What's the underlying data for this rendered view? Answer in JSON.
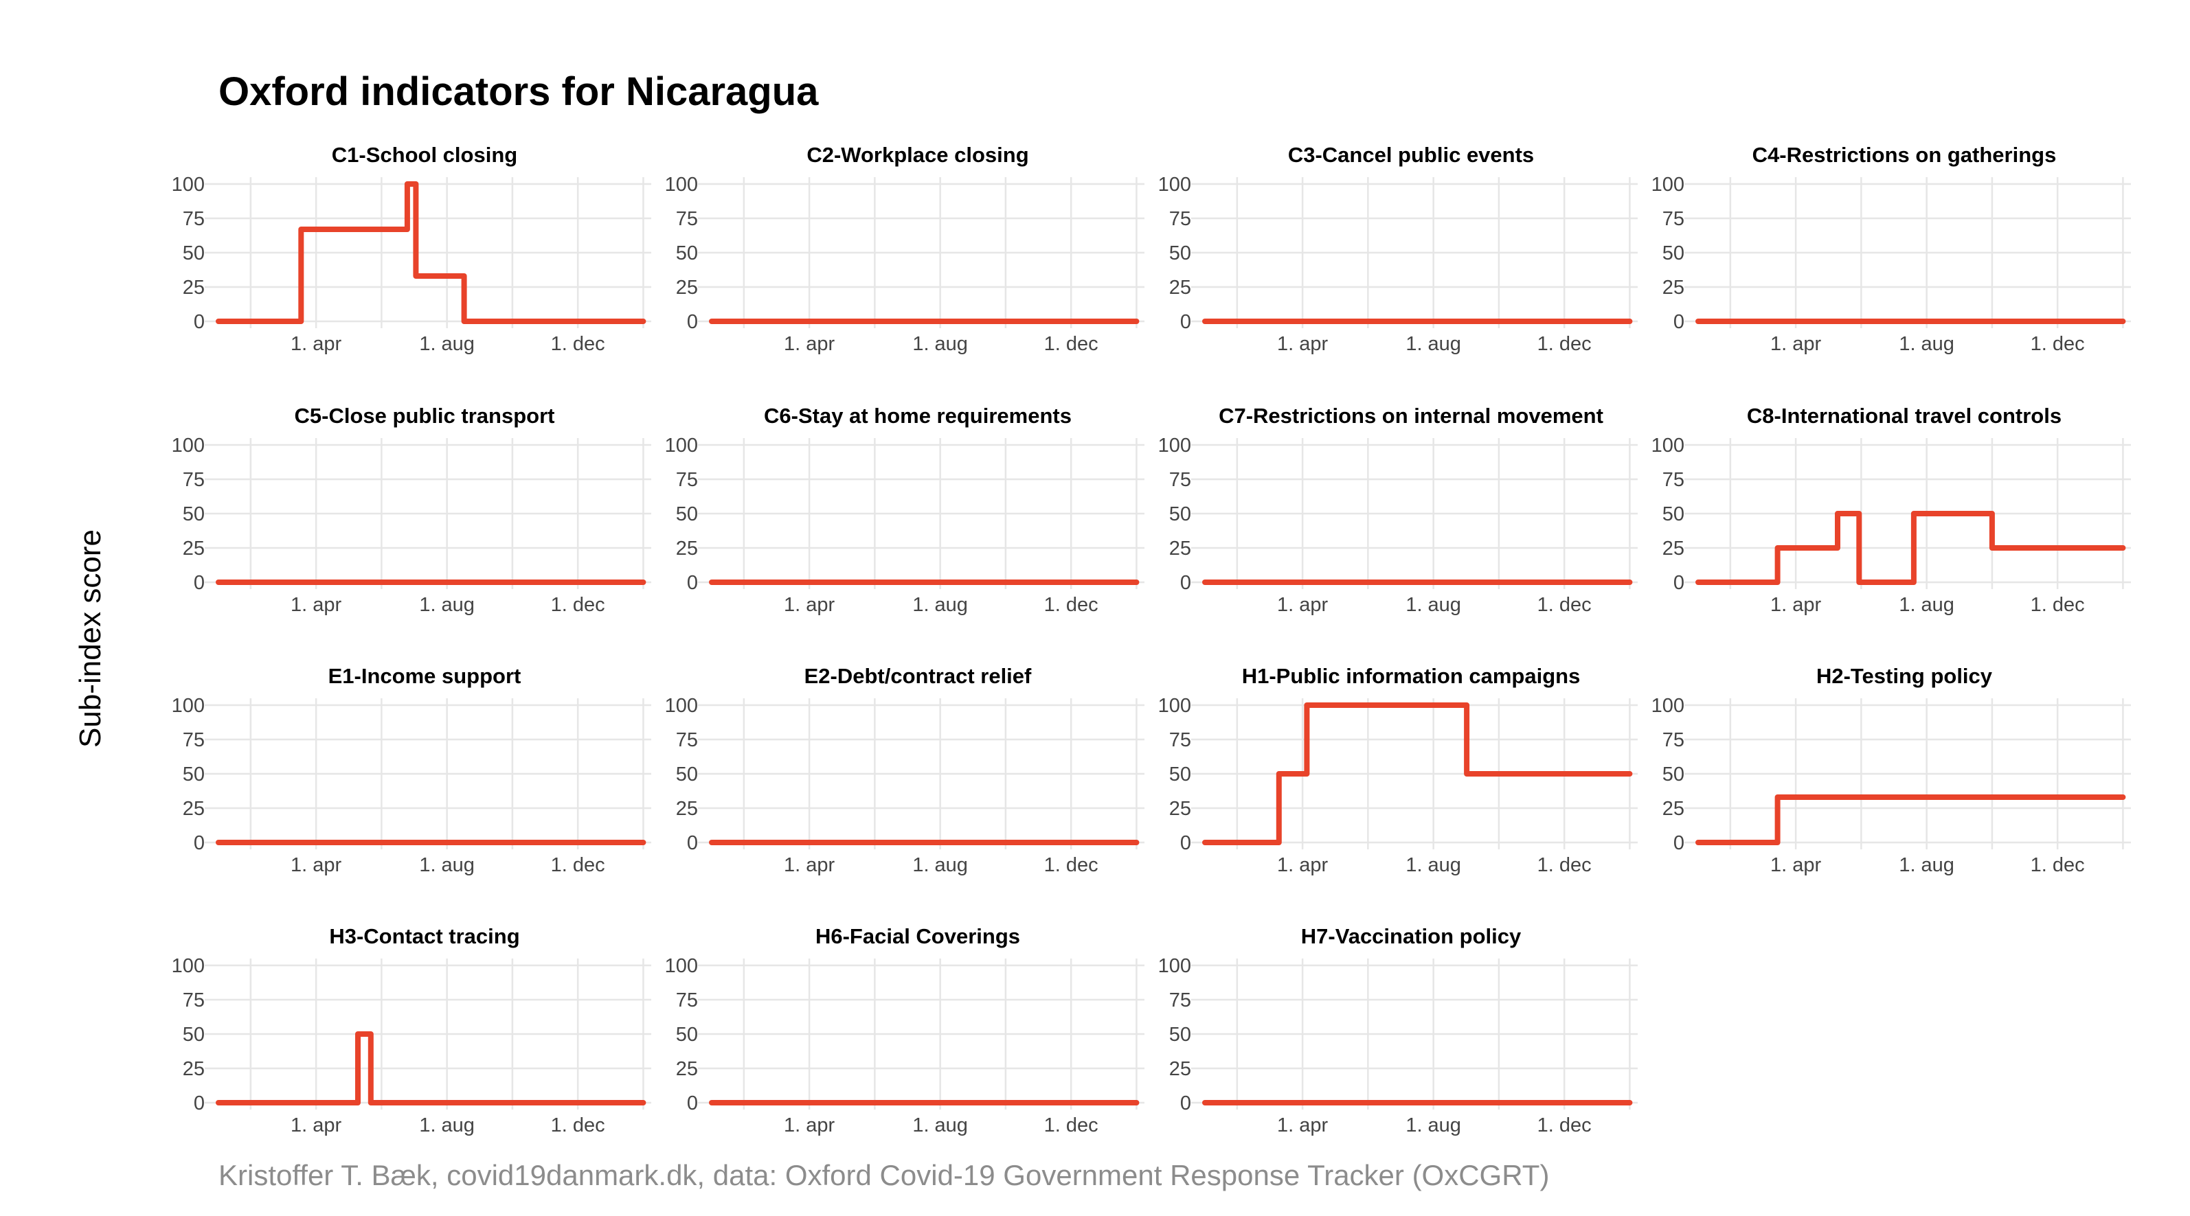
{
  "title": "Oxford indicators for Nicaragua",
  "ylabel": "Sub-index score",
  "caption": "Kristoffer T. Bæk, covid19danmark.dk, data: Oxford Covid-19 Government Response Tracker (OxCGRT)",
  "colors": {
    "series": "#e8432a",
    "grid": "#e6e6e6",
    "ticks": "#444444",
    "caption": "#8c8c8c"
  },
  "chart_data": {
    "type": "line",
    "step": true,
    "layout": "facet-grid 4x4",
    "xlim": [
      "2020-01-01",
      "2021-02-01"
    ],
    "ylim": [
      0,
      100
    ],
    "y_ticks": [
      0,
      25,
      50,
      75,
      100
    ],
    "x_ticks": [
      {
        "date": "2020-04-01",
        "label": "1. apr"
      },
      {
        "date": "2020-08-01",
        "label": "1. aug"
      },
      {
        "date": "2020-12-01",
        "label": "1. dec"
      }
    ],
    "grid": true,
    "panels": [
      {
        "title": "C1-School closing",
        "values": [
          [
            "2020-01-01",
            0
          ],
          [
            "2020-03-18",
            0
          ],
          [
            "2020-03-18",
            67
          ],
          [
            "2020-06-25",
            67
          ],
          [
            "2020-06-25",
            100
          ],
          [
            "2020-07-03",
            100
          ],
          [
            "2020-07-03",
            33
          ],
          [
            "2020-08-17",
            33
          ],
          [
            "2020-08-17",
            0
          ],
          [
            "2021-01-31",
            0
          ]
        ]
      },
      {
        "title": "C2-Workplace closing",
        "values": [
          [
            "2020-01-01",
            0
          ],
          [
            "2021-01-31",
            0
          ]
        ]
      },
      {
        "title": "C3-Cancel public events",
        "values": [
          [
            "2020-01-01",
            0
          ],
          [
            "2021-01-31",
            0
          ]
        ]
      },
      {
        "title": "C4-Restrictions on gatherings",
        "values": [
          [
            "2020-01-01",
            0
          ],
          [
            "2021-01-31",
            0
          ]
        ]
      },
      {
        "title": "C5-Close public transport",
        "values": [
          [
            "2020-01-01",
            0
          ],
          [
            "2021-01-31",
            0
          ]
        ]
      },
      {
        "title": "C6-Stay at home requirements",
        "values": [
          [
            "2020-01-01",
            0
          ],
          [
            "2021-01-31",
            0
          ]
        ]
      },
      {
        "title": "C7-Restrictions on internal movement",
        "values": [
          [
            "2020-01-01",
            0
          ],
          [
            "2021-01-31",
            0
          ]
        ]
      },
      {
        "title": "C8-International travel controls",
        "values": [
          [
            "2020-01-01",
            0
          ],
          [
            "2020-03-15",
            0
          ],
          [
            "2020-03-15",
            25
          ],
          [
            "2020-05-10",
            25
          ],
          [
            "2020-05-10",
            50
          ],
          [
            "2020-05-30",
            50
          ],
          [
            "2020-05-30",
            0
          ],
          [
            "2020-07-20",
            0
          ],
          [
            "2020-07-20",
            50
          ],
          [
            "2020-10-01",
            50
          ],
          [
            "2020-10-01",
            25
          ],
          [
            "2021-01-31",
            25
          ]
        ]
      },
      {
        "title": "E1-Income support",
        "values": [
          [
            "2020-01-01",
            0
          ],
          [
            "2021-01-31",
            0
          ]
        ]
      },
      {
        "title": "E2-Debt/contract relief",
        "values": [
          [
            "2020-01-01",
            0
          ],
          [
            "2021-01-31",
            0
          ]
        ]
      },
      {
        "title": "H1-Public information campaigns",
        "values": [
          [
            "2020-01-01",
            0
          ],
          [
            "2020-03-10",
            0
          ],
          [
            "2020-03-10",
            50
          ],
          [
            "2020-04-05",
            50
          ],
          [
            "2020-04-05",
            100
          ],
          [
            "2020-09-01",
            100
          ],
          [
            "2020-09-01",
            50
          ],
          [
            "2021-01-31",
            50
          ]
        ]
      },
      {
        "title": "H2-Testing policy",
        "values": [
          [
            "2020-01-01",
            0
          ],
          [
            "2020-03-15",
            0
          ],
          [
            "2020-03-15",
            33
          ],
          [
            "2021-01-31",
            33
          ]
        ]
      },
      {
        "title": "H3-Contact tracing",
        "values": [
          [
            "2020-01-01",
            0
          ],
          [
            "2020-05-10",
            0
          ],
          [
            "2020-05-10",
            50
          ],
          [
            "2020-05-22",
            50
          ],
          [
            "2020-05-22",
            0
          ],
          [
            "2021-01-31",
            0
          ]
        ]
      },
      {
        "title": "H6-Facial Coverings",
        "values": [
          [
            "2020-01-01",
            0
          ],
          [
            "2021-01-31",
            0
          ]
        ]
      },
      {
        "title": "H7-Vaccination policy",
        "values": [
          [
            "2020-01-01",
            0
          ],
          [
            "2021-01-31",
            0
          ]
        ]
      }
    ]
  }
}
